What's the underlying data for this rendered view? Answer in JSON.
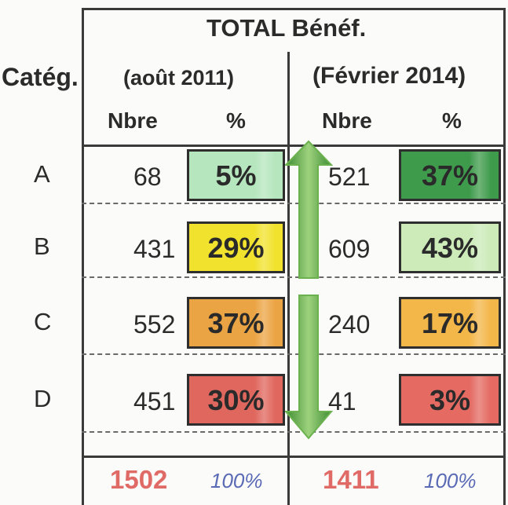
{
  "chart_data": {
    "type": "table",
    "title": "TOTAL Bénéf.",
    "row_header": "Catég.",
    "periods": [
      {
        "label": "(août 2011)",
        "col_labels": [
          "Nbre",
          "%"
        ]
      },
      {
        "label": "(Février 2014)",
        "col_labels": [
          "Nbre",
          "%"
        ]
      }
    ],
    "rows": [
      {
        "category": "A",
        "values": [
          {
            "nbre": "68",
            "pct": "5%",
            "color": "#b5e6bd"
          },
          {
            "nbre": "521",
            "pct": "37%",
            "color": "#3f9b4c"
          }
        ]
      },
      {
        "category": "B",
        "values": [
          {
            "nbre": "431",
            "pct": "29%",
            "color": "#f1e22e"
          },
          {
            "nbre": "609",
            "pct": "43%",
            "color": "#ccebb9"
          }
        ]
      },
      {
        "category": "C",
        "values": [
          {
            "nbre": "552",
            "pct": "37%",
            "color": "#eba444"
          },
          {
            "nbre": "240",
            "pct": "17%",
            "color": "#f3b648"
          }
        ]
      },
      {
        "category": "D",
        "values": [
          {
            "nbre": "451",
            "pct": "30%",
            "color": "#e0675e"
          },
          {
            "nbre": "41",
            "pct": "3%",
            "color": "#e46a62"
          }
        ]
      }
    ],
    "totals": [
      {
        "nbre": "1502",
        "pct": "100%"
      },
      {
        "nbre": "1411",
        "pct": "100%"
      }
    ],
    "arrow_color": "#6bb24f"
  }
}
